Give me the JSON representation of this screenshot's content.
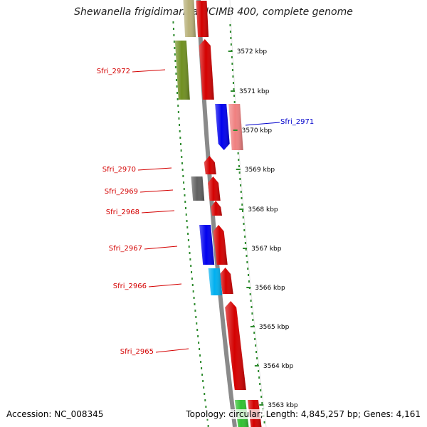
{
  "title": "Shewanella frigidimarina NCIMB 400, complete genome",
  "footer": {
    "accession": "Accession: NC_008345",
    "topology": "Topology: circular; Length: 4,845,257 bp; Genes: 4,161"
  },
  "colors": {
    "backbone": "#8a8a8a",
    "tick": "#2e8b2e",
    "label_forward": "#d40000",
    "label_reverse": "#0000cc"
  },
  "ticks": [
    {
      "label": "3572 kbp"
    },
    {
      "label": "3571 kbp"
    },
    {
      "label": "3570 kbp"
    },
    {
      "label": "3569 kbp"
    },
    {
      "label": "3568 kbp"
    },
    {
      "label": "3567 kbp"
    },
    {
      "label": "3566 kbp"
    },
    {
      "label": "3565 kbp"
    },
    {
      "label": "3564 kbp"
    },
    {
      "label": "3563 kbp"
    }
  ],
  "gene_labels": [
    {
      "name": "Sfri_2972",
      "strand": "forward"
    },
    {
      "name": "Sfri_2971",
      "strand": "reverse"
    },
    {
      "name": "Sfri_2970",
      "strand": "forward"
    },
    {
      "name": "Sfri_2969",
      "strand": "forward"
    },
    {
      "name": "Sfri_2968",
      "strand": "forward"
    },
    {
      "name": "Sfri_2967",
      "strand": "forward"
    },
    {
      "name": "Sfri_2966",
      "strand": "forward"
    },
    {
      "name": "Sfri_2965",
      "strand": "forward"
    }
  ],
  "features": [
    {
      "kind": "gene",
      "color": "#d40000"
    },
    {
      "kind": "gene",
      "color": "#d40000"
    },
    {
      "kind": "cds",
      "color": "#b8b078"
    },
    {
      "kind": "cds",
      "color": "#6f8f20"
    },
    {
      "kind": "gene",
      "color": "#0000ee"
    },
    {
      "kind": "cds",
      "color": "#f08080"
    },
    {
      "kind": "gene",
      "color": "#d40000"
    },
    {
      "kind": "gene",
      "color": "#d40000"
    },
    {
      "kind": "cds",
      "color": "#606060"
    },
    {
      "kind": "gene",
      "color": "#d40000"
    },
    {
      "kind": "gene",
      "color": "#d40000"
    },
    {
      "kind": "cds",
      "color": "#0000ee"
    },
    {
      "kind": "gene",
      "color": "#d40000"
    },
    {
      "kind": "cds",
      "color": "#00b0f0"
    },
    {
      "kind": "gene",
      "color": "#d40000"
    },
    {
      "kind": "gene",
      "color": "#30c030"
    },
    {
      "kind": "gene",
      "color": "#d40000"
    }
  ]
}
